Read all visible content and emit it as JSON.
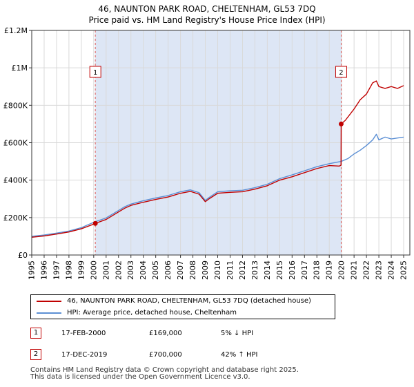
{
  "title_line1": "46, NAUNTON PARK ROAD, CHELTENHAM, GL53 7DQ",
  "title_line2": "Price paid vs. HM Land Registry's House Price Index (HPI)",
  "chart_data": {
    "type": "line",
    "title": "46, NAUNTON PARK ROAD, CHELTENHAM, GL53 7DQ - Price paid vs. HM Land Registry's House Price Index (HPI)",
    "xlabel": "",
    "ylabel": "",
    "xlim": [
      1995,
      2025.5
    ],
    "ylim": [
      0,
      1200000
    ],
    "grid": true,
    "x_ticks": [
      "1995",
      "1996",
      "1997",
      "1998",
      "1999",
      "2000",
      "2001",
      "2002",
      "2003",
      "2004",
      "2005",
      "2006",
      "2007",
      "2008",
      "2009",
      "2010",
      "2011",
      "2012",
      "2013",
      "2014",
      "2015",
      "2016",
      "2017",
      "2018",
      "2019",
      "2020",
      "2021",
      "2022",
      "2023",
      "2024",
      "2025"
    ],
    "y_ticks": [
      {
        "value": 0,
        "label": "£0"
      },
      {
        "value": 200000,
        "label": "£200K"
      },
      {
        "value": 400000,
        "label": "£400K"
      },
      {
        "value": 600000,
        "label": "£600K"
      },
      {
        "value": 800000,
        "label": "£800K"
      },
      {
        "value": 1000000,
        "label": "£1M"
      },
      {
        "value": 1200000,
        "label": "£1.2M"
      }
    ],
    "shaded_region": {
      "x_start": 2000.13,
      "x_end": 2019.96,
      "color": "#dde6f5"
    },
    "series": [
      {
        "name": "46, NAUNTON PARK ROAD, CHELTENHAM, GL53 7DQ (detached house)",
        "color": "#c00000",
        "x": [
          1995,
          1996,
          1997,
          1998,
          1999,
          2000.0,
          2000.13,
          2001,
          2002,
          2002.5,
          2003,
          2004,
          2005,
          2006,
          2007,
          2007.8,
          2008.5,
          2009.0,
          2009.3,
          2010,
          2011,
          2012,
          2013,
          2014,
          2015,
          2016,
          2017,
          2018,
          2019,
          2019.8,
          2019.95,
          2019.96,
          2020.3,
          2021,
          2021.5,
          2022,
          2022.5,
          2022.8,
          2023,
          2023.5,
          2024,
          2024.5,
          2025
        ],
        "y": [
          95000,
          102000,
          112000,
          123000,
          140000,
          165000,
          169000,
          190000,
          230000,
          250000,
          265000,
          282000,
          297000,
          310000,
          330000,
          340000,
          325000,
          285000,
          300000,
          330000,
          335000,
          338000,
          352000,
          370000,
          400000,
          418000,
          440000,
          462000,
          478000,
          475000,
          480000,
          700000,
          720000,
          780000,
          830000,
          860000,
          920000,
          930000,
          900000,
          890000,
          900000,
          890000,
          905000
        ]
      },
      {
        "name": "HPI: Average price, detached house, Cheltenham",
        "color": "#5b8fd4",
        "x": [
          1995,
          1996,
          1997,
          1998,
          1999,
          2000,
          2001,
          2002,
          2002.5,
          2003,
          2004,
          2005,
          2006,
          2007,
          2007.8,
          2008.5,
          2009.0,
          2009.3,
          2010,
          2011,
          2012,
          2013,
          2014,
          2015,
          2016,
          2017,
          2018,
          2019,
          2019.96,
          2020.5,
          2021,
          2021.5,
          2022,
          2022.5,
          2022.8,
          2023,
          2023.5,
          2024,
          2024.5,
          2025
        ],
        "y": [
          100000,
          107000,
          117000,
          128000,
          146000,
          175000,
          198000,
          238000,
          258000,
          272000,
          290000,
          305000,
          318000,
          338000,
          348000,
          333000,
          292000,
          307000,
          338000,
          343000,
          346000,
          360000,
          378000,
          408000,
          428000,
          450000,
          472000,
          488000,
          500000,
          515000,
          540000,
          560000,
          585000,
          615000,
          645000,
          615000,
          630000,
          620000,
          625000,
          630000
        ]
      }
    ],
    "markers": [
      {
        "label": "1",
        "x": 2000.13,
        "y": 169000
      },
      {
        "label": "2",
        "x": 2019.96,
        "y": 700000
      }
    ]
  },
  "legend": {
    "items": [
      {
        "label": "46, NAUNTON PARK ROAD, CHELTENHAM, GL53 7DQ (detached house)",
        "color": "#c00000"
      },
      {
        "label": "HPI: Average price, detached house, Cheltenham",
        "color": "#5b8fd4"
      }
    ]
  },
  "sales": [
    {
      "badge": "1",
      "date": "17-FEB-2000",
      "price": "£169,000",
      "hpi": "5% ↓ HPI"
    },
    {
      "badge": "2",
      "date": "17-DEC-2019",
      "price": "£700,000",
      "hpi": "42% ↑ HPI"
    }
  ],
  "footer": {
    "line1": "Contains HM Land Registry data © Crown copyright and database right 2025.",
    "line2": "This data is licensed under the Open Government Licence v3.0."
  }
}
